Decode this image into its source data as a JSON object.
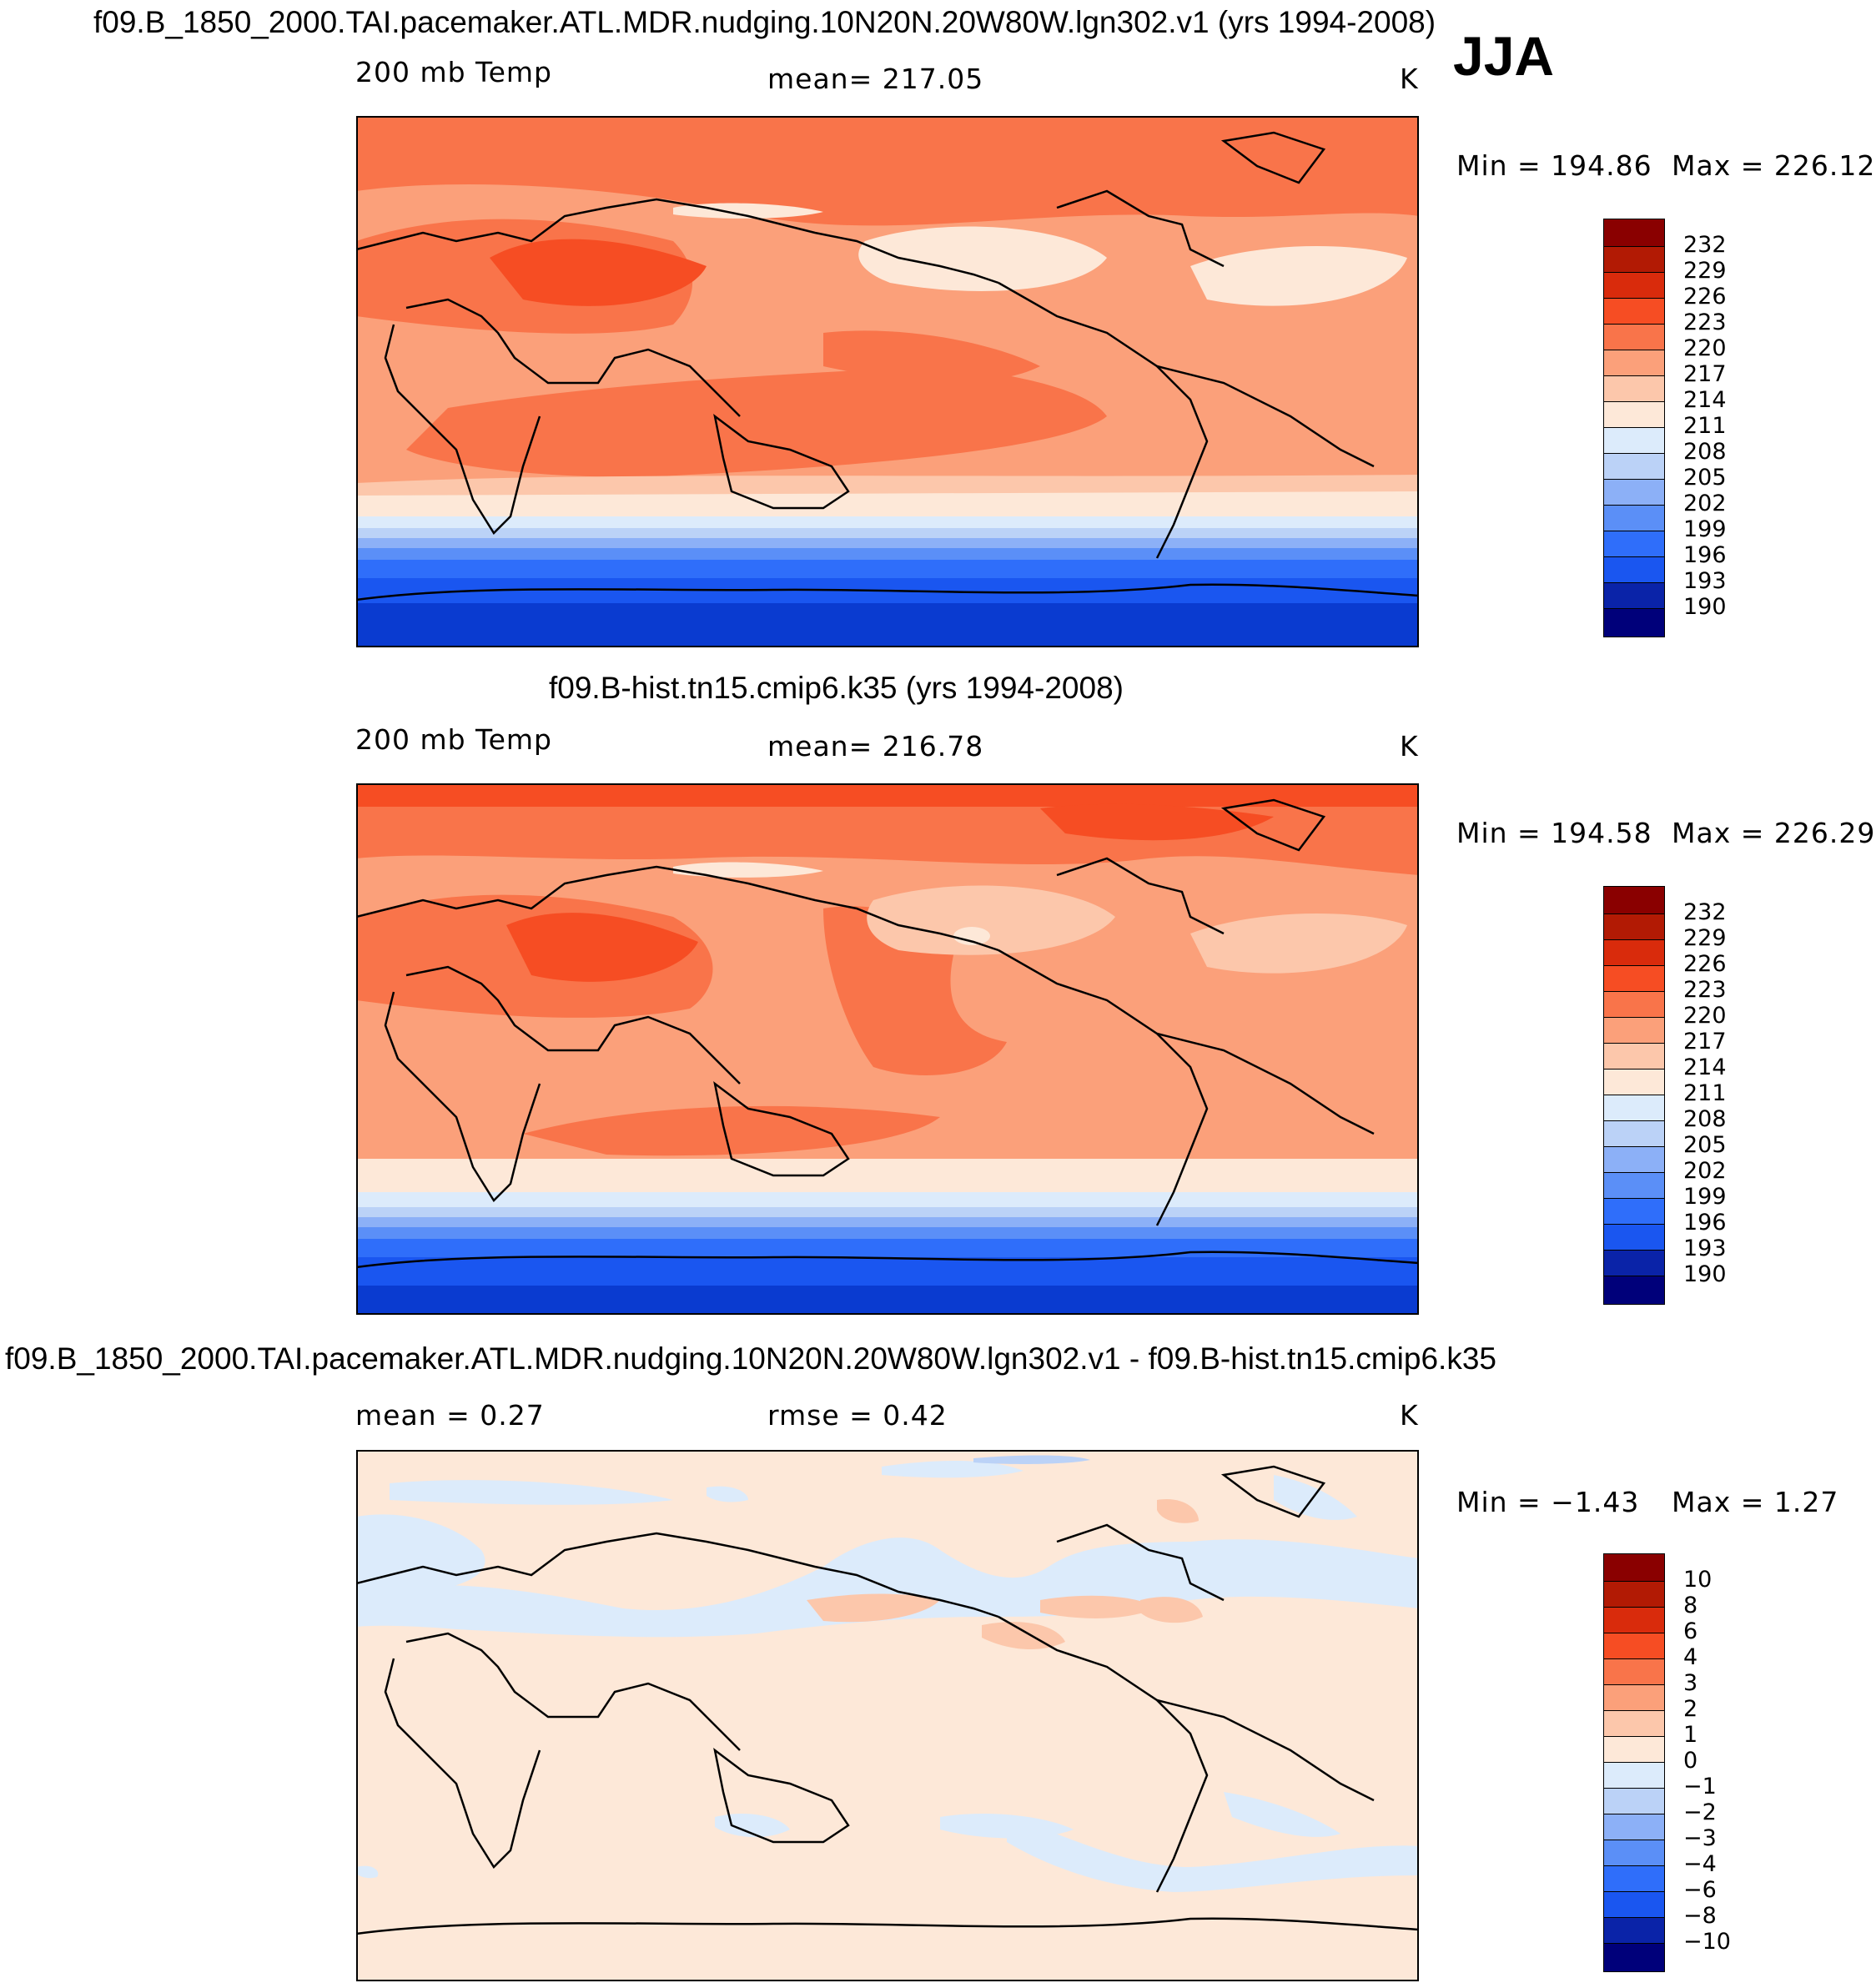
{
  "season": "JJA",
  "colors": {
    "abs_scale": [
      "#00007a",
      "#0a23a8",
      "#0a3bd0",
      "#1a56f0",
      "#2f6efa",
      "#5b8ff7",
      "#8cb0f7",
      "#bbd2f7",
      "#dcebfb",
      "#fde8d8",
      "#fcc7ab",
      "#fba07a",
      "#f9744a",
      "#f64d23",
      "#d92b0c",
      "#b21a04",
      "#8a0000"
    ],
    "diff_scale": [
      "#00007a",
      "#0a23a8",
      "#0a3bd0",
      "#1a56f0",
      "#2f6efa",
      "#5b8ff7",
      "#8cb0f7",
      "#bbd2f7",
      "#dcebfb",
      "#fde8d8",
      "#fcc7ab",
      "#fba07a",
      "#f9744a",
      "#f64d23",
      "#d92b0c",
      "#b21a04",
      "#8a0000"
    ]
  },
  "panels": [
    {
      "title": "f09.B_1850_2000.TAI.pacemaker.ATL.MDR.nudging.10N20N.20W80W.lgn302.v1 (yrs 1994-2008)",
      "left_label": "200 mb Temp",
      "center_label": "mean= 217.05",
      "units": "K",
      "min_label": "Min = 194.86",
      "max_label": "Max = 226.12",
      "colorbar_ticks": [
        "232",
        "229",
        "226",
        "223",
        "220",
        "217",
        "214",
        "211",
        "208",
        "205",
        "202",
        "199",
        "196",
        "193",
        "190"
      ]
    },
    {
      "title": "f09.B-hist.tn15.cmip6.k35 (yrs 1994-2008)",
      "left_label": "200 mb Temp",
      "center_label": "mean= 216.78",
      "units": "K",
      "min_label": "Min = 194.58",
      "max_label": "Max = 226.29",
      "colorbar_ticks": [
        "232",
        "229",
        "226",
        "223",
        "220",
        "217",
        "214",
        "211",
        "208",
        "205",
        "202",
        "199",
        "196",
        "193",
        "190"
      ]
    },
    {
      "title": "f09.B_1850_2000.TAI.pacemaker.ATL.MDR.nudging.10N20N.20W80W.lgn302.v1 - f09.B-hist.tn15.cmip6.k35",
      "left_label": "mean =    0.27",
      "center_label": "rmse =    0.42",
      "units": "K",
      "min_label": "Min =  −1.43",
      "max_label": "Max =    1.27",
      "colorbar_ticks": [
        "10",
        "8",
        "6",
        "4",
        "3",
        "2",
        "1",
        "0",
        "−1",
        "−2",
        "−3",
        "−4",
        "−6",
        "−8",
        "−10"
      ]
    }
  ]
}
